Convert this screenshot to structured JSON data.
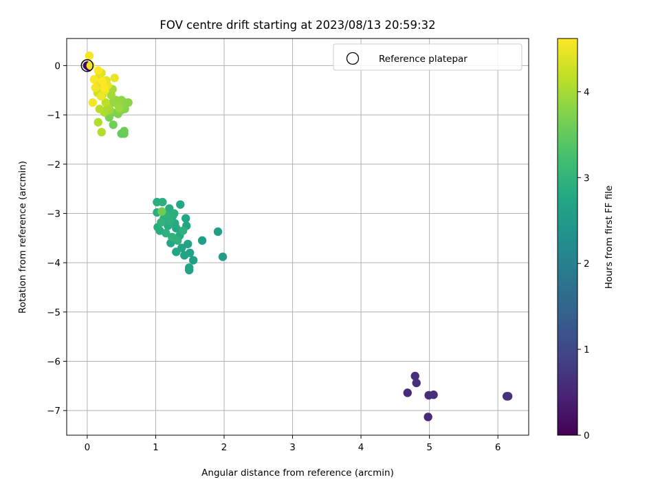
{
  "chart_data": {
    "type": "scatter",
    "title": "FOV centre drift starting at 2023/08/13 20:59:32",
    "xlabel": "Angular distance from reference (arcmin)",
    "ylabel": "Rotation from reference (arcmin)",
    "xlim": [
      -0.3,
      6.45
    ],
    "ylim": [
      -7.5,
      0.55
    ],
    "x_ticks": [
      0,
      1,
      2,
      3,
      4,
      5,
      6
    ],
    "y_ticks": [
      0,
      -1,
      -2,
      -3,
      -4,
      -5,
      -6,
      -7
    ],
    "x_tick_labels": [
      "0",
      "1",
      "2",
      "3",
      "4",
      "5",
      "6"
    ],
    "y_tick_labels": [
      "0",
      "−1",
      "−2",
      "−3",
      "−4",
      "−5",
      "−6",
      "−7"
    ],
    "grid": true,
    "legend": {
      "position": "top-right",
      "entries": [
        "Reference platepar"
      ]
    },
    "colorbar": {
      "label": "Hours from first FF file",
      "range": [
        0,
        4.62
      ],
      "ticks": [
        0,
        1,
        2,
        3,
        4
      ],
      "tick_labels": [
        "0",
        "1",
        "2",
        "3",
        "4"
      ],
      "colormap": "viridis"
    },
    "reference_point": {
      "x": 0,
      "y": 0,
      "hours": 0
    },
    "points": [
      [
        0,
        0,
        0.03
      ],
      [
        0.02,
        -0.02,
        0.05
      ],
      [
        4.79,
        -6.3,
        0.62
      ],
      [
        4.81,
        -6.44,
        0.6
      ],
      [
        4.68,
        -6.64,
        0.58
      ],
      [
        4.99,
        -6.69,
        0.61
      ],
      [
        5.06,
        -6.68,
        0.6
      ],
      [
        4.98,
        -7.13,
        0.55
      ],
      [
        6.13,
        -6.71,
        0.63
      ],
      [
        6.15,
        -6.71,
        0.64
      ],
      [
        1.98,
        -3.88,
        2.55
      ],
      [
        1.91,
        -3.37,
        2.58
      ],
      [
        1.68,
        -3.55,
        2.6
      ],
      [
        1.55,
        -3.95,
        2.62
      ],
      [
        1.49,
        -4.15,
        2.63
      ],
      [
        1.49,
        -4.1,
        2.65
      ],
      [
        1.5,
        -3.8,
        2.66
      ],
      [
        1.42,
        -3.85,
        2.68
      ],
      [
        1.47,
        -3.62,
        2.69
      ],
      [
        1.38,
        -3.7,
        2.7
      ],
      [
        1.3,
        -3.78,
        2.72
      ],
      [
        1.22,
        -3.6,
        2.73
      ],
      [
        1.45,
        -3.25,
        2.74
      ],
      [
        1.44,
        -3.1,
        2.76
      ],
      [
        1.36,
        -2.82,
        2.77
      ],
      [
        1.3,
        -3.3,
        2.78
      ],
      [
        1.35,
        -3.45,
        2.8
      ],
      [
        1.28,
        -3.2,
        2.81
      ],
      [
        1.25,
        -3.05,
        2.82
      ],
      [
        1.2,
        -2.9,
        2.84
      ],
      [
        1.18,
        -3.25,
        2.85
      ],
      [
        1.12,
        -3.1,
        2.86
      ],
      [
        1.06,
        -3.35,
        2.87
      ],
      [
        1.03,
        -3.28,
        2.88
      ],
      [
        1.02,
        -2.98,
        2.89
      ],
      [
        1.02,
        -2.77,
        2.9
      ],
      [
        1.1,
        -2.77,
        2.91
      ],
      [
        1.15,
        -3.4,
        2.92
      ],
      [
        1.21,
        -3.15,
        2.93
      ],
      [
        1.27,
        -3.0,
        2.94
      ],
      [
        1.32,
        -3.55,
        2.95
      ],
      [
        1.4,
        -3.35,
        2.96
      ],
      [
        1.16,
        -3.02,
        2.97
      ],
      [
        1.24,
        -3.48,
        2.98
      ],
      [
        1.08,
        -3.18,
        2.99
      ],
      [
        1.09,
        -2.96,
        3.6
      ],
      [
        0.54,
        -1.38,
        3.55
      ],
      [
        0.5,
        -1.38,
        3.52
      ],
      [
        0.54,
        -1.33,
        3.58
      ],
      [
        0.38,
        -1.2,
        3.62
      ],
      [
        0.32,
        -1.05,
        3.66
      ],
      [
        0.37,
        -0.95,
        3.7
      ],
      [
        0.45,
        -0.98,
        3.74
      ],
      [
        0.5,
        -0.9,
        3.76
      ],
      [
        0.55,
        -0.88,
        3.78
      ],
      [
        0.6,
        -0.75,
        3.8
      ],
      [
        0.55,
        -0.75,
        3.82
      ],
      [
        0.5,
        -0.7,
        3.84
      ],
      [
        0.42,
        -0.7,
        3.86
      ],
      [
        0.37,
        -0.75,
        3.88
      ],
      [
        0.45,
        -0.8,
        3.9
      ],
      [
        0.47,
        -0.87,
        3.92
      ],
      [
        0.33,
        -0.9,
        3.95
      ],
      [
        0.35,
        -0.6,
        3.98
      ],
      [
        0.37,
        -0.48,
        4.0
      ],
      [
        0.3,
        -0.85,
        4.02
      ],
      [
        0.25,
        -0.95,
        4.05
      ],
      [
        0.16,
        -1.15,
        4.08
      ],
      [
        0.21,
        -1.35,
        4.1
      ],
      [
        0.18,
        -0.88,
        4.12
      ],
      [
        0.27,
        -0.75,
        4.15
      ],
      [
        0.22,
        -0.6,
        4.18
      ],
      [
        0.15,
        -0.55,
        4.25
      ],
      [
        0.17,
        -0.4,
        4.3
      ],
      [
        0.13,
        -0.3,
        4.35
      ],
      [
        0.18,
        -0.2,
        4.4
      ],
      [
        0.21,
        -0.15,
        4.42
      ],
      [
        0.28,
        -0.3,
        4.44
      ],
      [
        0.3,
        -0.4,
        4.46
      ],
      [
        0.4,
        -0.25,
        4.48
      ],
      [
        0.26,
        -0.5,
        4.5
      ],
      [
        0.2,
        -0.62,
        4.52
      ],
      [
        0.12,
        -0.45,
        4.53
      ],
      [
        0.08,
        -0.75,
        4.54
      ],
      [
        0.05,
        0.0,
        4.56
      ],
      [
        0.03,
        0.2,
        4.58
      ],
      [
        0.1,
        -0.28,
        4.59
      ],
      [
        0.16,
        -0.1,
        4.6
      ],
      [
        0.22,
        -0.32,
        4.61
      ],
      [
        0.25,
        -0.45,
        4.62
      ]
    ]
  }
}
